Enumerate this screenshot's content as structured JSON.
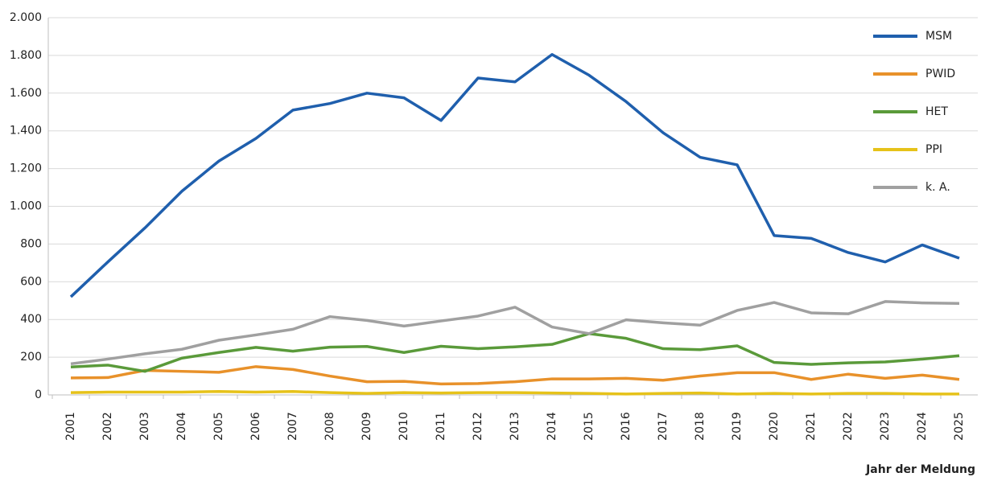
{
  "chart_data": {
    "type": "line",
    "x_label": "Jahr der Meldung",
    "categories": [
      "2001",
      "2002",
      "2003",
      "2004",
      "2005",
      "2006",
      "2007",
      "2008",
      "2009",
      "2010",
      "2011",
      "2012",
      "2013",
      "2014",
      "2015",
      "2016",
      "2017",
      "2018",
      "2019",
      "2020",
      "2021",
      "2022",
      "2023",
      "2024",
      "2025"
    ],
    "series": [
      {
        "name": "MSM",
        "color": "#1f5fad",
        "values": [
          520,
          705,
          885,
          1080,
          1240,
          1360,
          1510,
          1545,
          1600,
          1575,
          1455,
          1680,
          1660,
          1805,
          1695,
          1555,
          1390,
          1260,
          1220,
          845,
          830,
          755,
          705,
          795,
          725
        ]
      },
      {
        "name": "PWID",
        "color": "#e8912a",
        "values": [
          90,
          92,
          130,
          125,
          120,
          150,
          135,
          100,
          70,
          72,
          58,
          60,
          70,
          85,
          85,
          88,
          78,
          100,
          118,
          118,
          82,
          110,
          88,
          105,
          82
        ]
      },
      {
        "name": "HET",
        "color": "#5a9a3a",
        "values": [
          148,
          158,
          125,
          195,
          225,
          252,
          232,
          253,
          257,
          225,
          258,
          245,
          255,
          268,
          325,
          300,
          245,
          240,
          260,
          172,
          162,
          170,
          175,
          190,
          208
        ]
      },
      {
        "name": "PPI",
        "color": "#e6c21a",
        "values": [
          12,
          15,
          15,
          15,
          18,
          15,
          18,
          12,
          8,
          12,
          10,
          12,
          12,
          10,
          8,
          5,
          8,
          10,
          5,
          8,
          5,
          8,
          8,
          5,
          5
        ]
      },
      {
        "name": "k. A.",
        "color": "#a0a0a0",
        "values": [
          165,
          190,
          218,
          242,
          290,
          318,
          348,
          415,
          395,
          365,
          392,
          418,
          465,
          360,
          325,
          398,
          382,
          370,
          448,
          490,
          435,
          430,
          495,
          488,
          485
        ]
      }
    ],
    "ylim": [
      0,
      2000
    ],
    "yticks": [
      0,
      200,
      400,
      600,
      800,
      {
        "value": 1000,
        "label": "1.000"
      },
      {
        "value": 1200,
        "label": "1.200"
      },
      {
        "value": 1400,
        "label": "1.400"
      },
      {
        "value": 1600,
        "label": "1.600"
      },
      {
        "value": 1800,
        "label": "1.800"
      },
      {
        "value": 2000,
        "label": "2.000"
      }
    ],
    "grid": true,
    "legend": "top-right"
  }
}
